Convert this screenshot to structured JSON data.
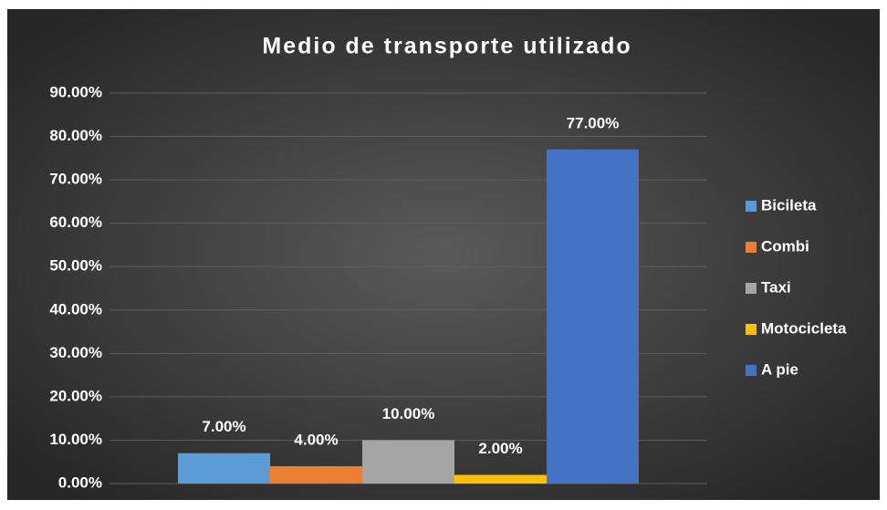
{
  "chart_data": {
    "type": "bar",
    "title": "Medio de transporte utilizado",
    "categories": [
      null
    ],
    "series": [
      {
        "name": "Bicileta",
        "color": "#5b9bd5",
        "values": [
          7
        ],
        "value_labels": [
          "7.00%"
        ]
      },
      {
        "name": "Combi",
        "color": "#ed7d31",
        "values": [
          4
        ],
        "value_labels": [
          "4.00%"
        ]
      },
      {
        "name": "Taxi",
        "color": "#a5a5a5",
        "values": [
          10
        ],
        "value_labels": [
          "10.00%"
        ]
      },
      {
        "name": "Motocicleta",
        "color": "#ffc000",
        "values": [
          2
        ],
        "value_labels": [
          "2.00%"
        ]
      },
      {
        "name": "A pie",
        "color": "#4472c4",
        "values": [
          77
        ],
        "value_labels": [
          "77.00%"
        ]
      }
    ],
    "ylim": [
      0,
      90
    ],
    "yticks": [
      {
        "value": 0,
        "label": "0.00%"
      },
      {
        "value": 10,
        "label": "10.00%"
      },
      {
        "value": 20,
        "label": "20.00%"
      },
      {
        "value": 30,
        "label": "30.00%"
      },
      {
        "value": 40,
        "label": "40.00%"
      },
      {
        "value": 50,
        "label": "50.00%"
      },
      {
        "value": 60,
        "label": "60.00%"
      },
      {
        "value": 70,
        "label": "70.00%"
      },
      {
        "value": 80,
        "label": "80.00%"
      },
      {
        "value": 90,
        "label": "90.00%"
      }
    ],
    "grid": true,
    "legend": "right"
  }
}
